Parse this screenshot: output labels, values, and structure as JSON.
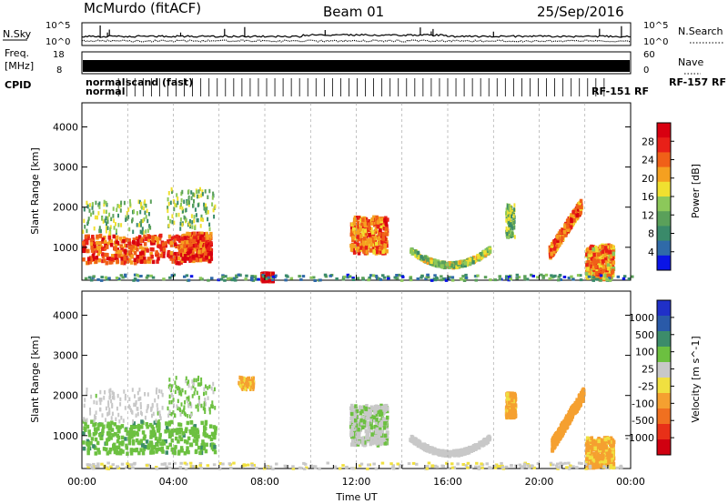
{
  "header": {
    "station": "McMurdo (fitACF)",
    "beam": "Beam 01",
    "date": "25/Sep/2016"
  },
  "summary_labels": {
    "nsky": "N.Sky",
    "nsky_hi": "10^5",
    "nsky_lo": "10^0",
    "nsearch": "N.Search",
    "nsearch_hi": "10^5",
    "nsearch_lo": "10^0",
    "freq_line1": "Freq.",
    "freq_line2": "[MHz]",
    "freq_hi": "18",
    "freq_lo": "8",
    "nave": "Nave",
    "nave_hi": "60",
    "nave_lo": "0",
    "cpid": "CPID",
    "cpid_row1": "normal",
    "cpid_row2": "normal",
    "cpid_mid": "scand (fast)",
    "cpid_rf": "RF-157 RF",
    "cpid_rf2": "RF-151 RF"
  },
  "colors": {
    "power_scale": [
      "#0a14e6",
      "#2f6aa8",
      "#3a8a6a",
      "#5aa05a",
      "#8cc85a",
      "#f0e030",
      "#f5a020",
      "#f06018",
      "#e82018",
      "#d80010"
    ],
    "velocity_scale": [
      "#2030c8",
      "#2a5aa8",
      "#3c8c6a",
      "#6cc040",
      "#c8c8c8",
      "#f0e040",
      "#f5a030",
      "#f07020",
      "#e83018",
      "#d00010"
    ],
    "ground_scatter": "#a0a0a0"
  },
  "chart_data": [
    {
      "type": "heatmap",
      "panel": "power",
      "ylabel": "Slant Range [km]",
      "xlabel": "",
      "ylim": [
        180,
        4600
      ],
      "yticks": [
        "1000",
        "2000",
        "3000",
        "4000"
      ],
      "xticks": [
        "00:00",
        "04:00",
        "08:00",
        "12:00",
        "16:00",
        "20:00",
        "00:00"
      ],
      "colorbar": {
        "label": "Power [dB]",
        "ticks": [
          "4",
          "8",
          "12",
          "16",
          "20",
          "24",
          "28"
        ],
        "range": [
          0,
          30
        ]
      },
      "patches": [
        {
          "t0": 0.0,
          "t1": 4.4,
          "r0": 650,
          "r1": 1350,
          "level": 24,
          "kind": "band"
        },
        {
          "t0": 0.0,
          "t1": 3.0,
          "r0": 1400,
          "r1": 2200,
          "level": 12,
          "kind": "sparse"
        },
        {
          "t0": 3.7,
          "t1": 5.8,
          "r0": 1500,
          "r1": 2500,
          "level": 12,
          "kind": "sparse"
        },
        {
          "t0": 4.3,
          "t1": 5.6,
          "r0": 700,
          "r1": 1400,
          "level": 24,
          "kind": "band"
        },
        {
          "t0": 7.8,
          "t1": 8.3,
          "r0": 200,
          "r1": 400,
          "level": 28,
          "kind": "band"
        },
        {
          "t0": 11.7,
          "t1": 13.3,
          "r0": 900,
          "r1": 1800,
          "level": 22,
          "kind": "band"
        },
        {
          "t0": 14.3,
          "t1": 17.8,
          "r0": 500,
          "r1": 1000,
          "level": 14,
          "kind": "arc"
        },
        {
          "t0": 18.5,
          "t1": 18.9,
          "r0": 1300,
          "r1": 2100,
          "level": 12,
          "kind": "sparse"
        },
        {
          "t0": 20.4,
          "t1": 21.8,
          "r0": 900,
          "r1": 2100,
          "level": 22,
          "kind": "diag"
        },
        {
          "t0": 22.0,
          "t1": 23.2,
          "r0": 250,
          "r1": 1100,
          "level": 20,
          "kind": "band"
        },
        {
          "t0": 0.0,
          "t1": 24.0,
          "r0": 180,
          "r1": 350,
          "level": 8,
          "kind": "floor"
        }
      ]
    },
    {
      "type": "heatmap",
      "panel": "velocity",
      "ylabel": "Slant Range [km]",
      "xlabel": "Time UT",
      "ylim": [
        180,
        4600
      ],
      "yticks": [
        "1000",
        "2000",
        "3000",
        "4000"
      ],
      "xticks": [
        "00:00",
        "04:00",
        "08:00",
        "12:00",
        "16:00",
        "20:00",
        "00:00"
      ],
      "colorbar": {
        "label": "Velocity [m s^-1]",
        "ticks": [
          "1000",
          "500",
          "100",
          "25",
          "-25",
          "-100",
          "-500",
          "-1000"
        ],
        "range": [
          -1200,
          1200
        ]
      },
      "patches": [
        {
          "t0": 0.0,
          "t1": 5.8,
          "r0": 600,
          "r1": 1400,
          "level": 400,
          "kind": "band"
        },
        {
          "t0": 0.0,
          "t1": 3.5,
          "r0": 1400,
          "r1": 2200,
          "level": 150,
          "kind": "sparse"
        },
        {
          "t0": 3.7,
          "t1": 5.8,
          "r0": 1500,
          "r1": 2500,
          "level": 300,
          "kind": "sparse"
        },
        {
          "t0": 6.8,
          "t1": 7.5,
          "r0": 2200,
          "r1": 2500,
          "level": -300,
          "kind": "sparse"
        },
        {
          "t0": 11.7,
          "t1": 13.3,
          "r0": 800,
          "r1": 1800,
          "level": 200,
          "kind": "band"
        },
        {
          "t0": 14.3,
          "t1": 17.8,
          "r0": 500,
          "r1": 1000,
          "level": 100,
          "kind": "arc"
        },
        {
          "t0": 18.5,
          "t1": 18.9,
          "r0": 1500,
          "r1": 2100,
          "level": -300,
          "kind": "band"
        },
        {
          "t0": 20.5,
          "t1": 21.9,
          "r0": 800,
          "r1": 2100,
          "level": -350,
          "kind": "diag"
        },
        {
          "t0": 22.0,
          "t1": 23.2,
          "r0": 250,
          "r1": 1000,
          "level": -300,
          "kind": "band"
        },
        {
          "t0": 0.0,
          "t1": 24.0,
          "r0": 180,
          "r1": 350,
          "level": 40,
          "kind": "floor"
        }
      ]
    }
  ]
}
